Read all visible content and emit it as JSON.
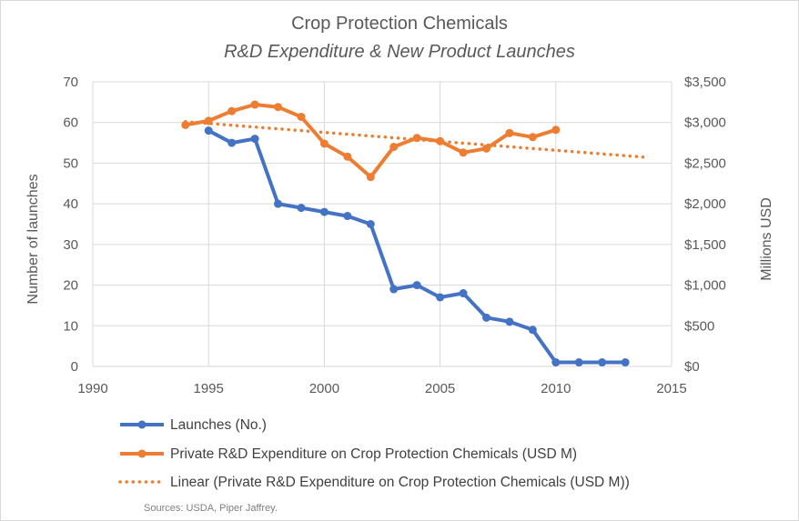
{
  "chart_data": {
    "type": "line",
    "title": "Crop Protection Chemicals",
    "subtitle": "R&D Expenditure & New Product Launches",
    "xlabel": "",
    "ylabel_left": "Number of launches",
    "ylabel_right": "Millions USD",
    "xlim": [
      1990,
      2015
    ],
    "x_ticks": [
      "1990",
      "1995",
      "2000",
      "2005",
      "2010",
      "2015"
    ],
    "y_left_lim": [
      0,
      70
    ],
    "y_left_ticks": [
      "0",
      "10",
      "20",
      "30",
      "40",
      "50",
      "60",
      "70"
    ],
    "y_right_lim": [
      0,
      3500
    ],
    "y_right_ticks": [
      "$0",
      "$500",
      "$1,000",
      "$1,500",
      "$2,000",
      "$2,500",
      "$3,000",
      "$3,500"
    ],
    "grid": "vertical and horizontal major gridlines",
    "legend_placement": "bottom",
    "series": [
      {
        "name": "Launches (No.)",
        "axis": "left",
        "color": "#4472c4",
        "style": "solid-markers",
        "x": [
          1995,
          1996,
          1997,
          1998,
          1999,
          2000,
          2001,
          2002,
          2003,
          2004,
          2005,
          2006,
          2007,
          2008,
          2009,
          2010,
          2011,
          2012,
          2013
        ],
        "values": [
          58,
          55,
          56,
          40,
          39,
          38,
          37,
          35,
          19,
          20,
          17,
          18,
          12,
          11,
          9,
          1,
          1,
          1,
          1
        ]
      },
      {
        "name": "Private R&D Expenditure on Crop Protection Chemicals (USD M)",
        "axis": "right",
        "color": "#ed7d31",
        "style": "solid-markers",
        "x": [
          1994,
          1995,
          1996,
          1997,
          1998,
          1999,
          2000,
          2001,
          2002,
          2003,
          2004,
          2005,
          2006,
          2007,
          2008,
          2009,
          2010
        ],
        "values": [
          2970,
          3020,
          3140,
          3220,
          3190,
          3070,
          2740,
          2580,
          2330,
          2700,
          2810,
          2770,
          2630,
          2680,
          2870,
          2820,
          2910
        ]
      },
      {
        "name": "Linear  (Private R&D Expenditure on Crop Protection Chemicals (USD M))",
        "axis": "right",
        "color": "#ed7d31",
        "style": "dotted",
        "x": [
          1994,
          2014
        ],
        "values": [
          3010,
          2570
        ]
      }
    ],
    "source": "Sources: USDA, Piper Jaffrey."
  }
}
